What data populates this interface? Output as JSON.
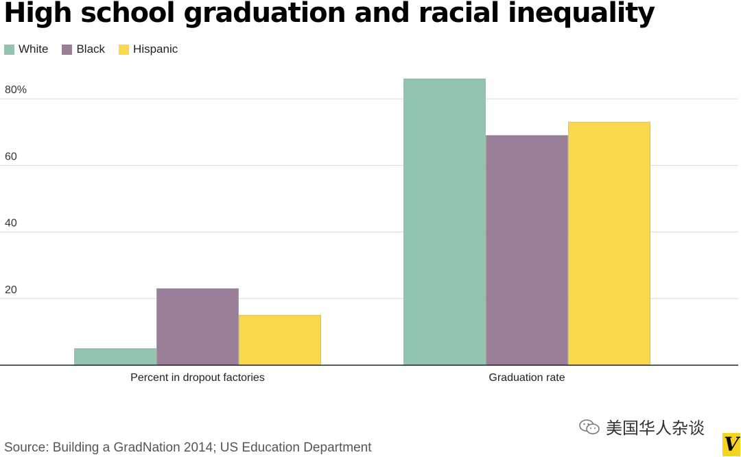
{
  "title": "High school graduation and racial inequality",
  "legend": [
    {
      "label": "White",
      "color": "#92c4b0"
    },
    {
      "label": "Black",
      "color": "#998098"
    },
    {
      "label": "Hispanic",
      "color": "#fad84c"
    }
  ],
  "chart_data": {
    "type": "bar",
    "title": "High school graduation and racial inequality",
    "categories": [
      "Percent in dropout factories",
      "Graduation rate"
    ],
    "series": [
      {
        "name": "White",
        "values": [
          5,
          86
        ],
        "color": "#92c4b0"
      },
      {
        "name": "Black",
        "values": [
          23,
          69
        ],
        "color": "#998098"
      },
      {
        "name": "Hispanic",
        "values": [
          15,
          73
        ],
        "color": "#fad84c"
      }
    ],
    "y_ticks": [
      20,
      40,
      60,
      80
    ],
    "y_tick_labels": [
      "20",
      "40",
      "60",
      "80%"
    ],
    "ylim": [
      0,
      88
    ],
    "xlabel": "",
    "ylabel": "",
    "grid": true,
    "legend_position": "top-left"
  },
  "source": "Source: Building a GradNation 2014; US Education Department",
  "watermark": "美国华人杂谈",
  "logo": "V"
}
